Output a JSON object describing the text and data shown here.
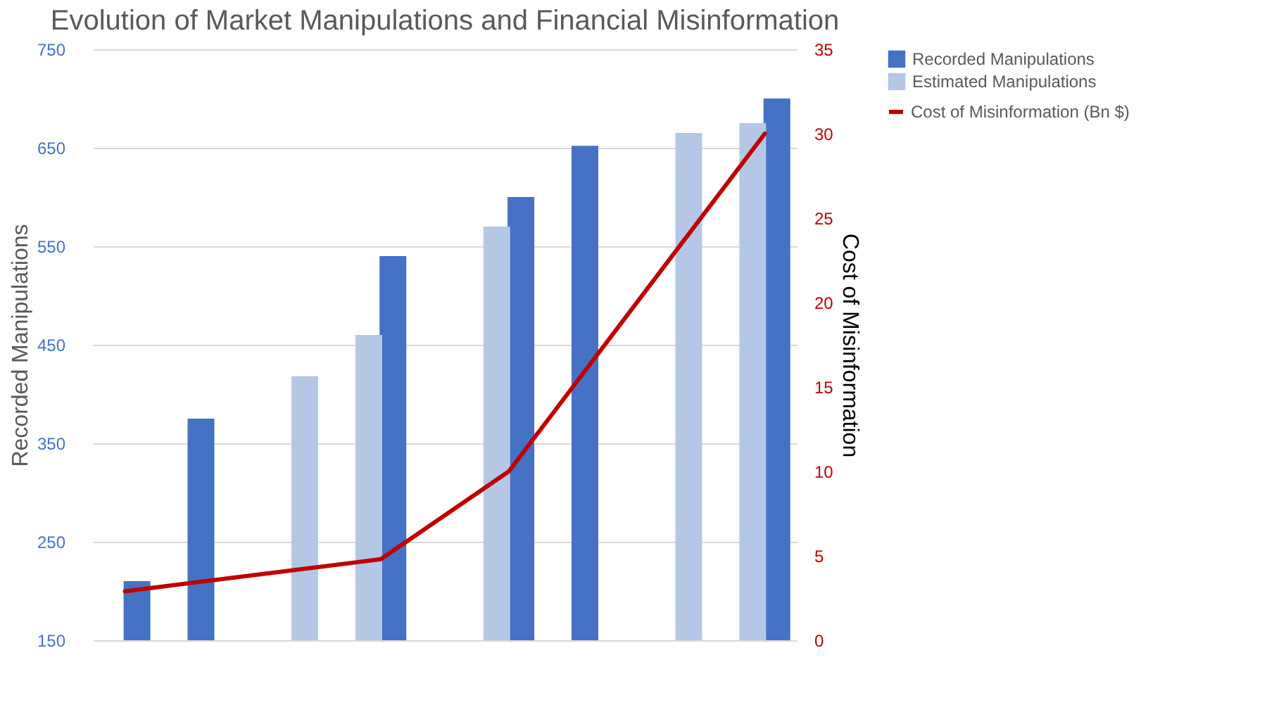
{
  "chart_data": {
    "type": "bar",
    "title": "Evolution of Market Manipulations and Financial Misinformation",
    "ylabel": "Recorded Manipulations",
    "y2label": "Cost of Misinformation",
    "categories": [
      null,
      null,
      null,
      null,
      null,
      null,
      null,
      null,
      null,
      null,
      null
    ],
    "series": [
      {
        "name": "Recorded Manipulations",
        "color": "#4472c4",
        "values": [
          210,
          375,
          null,
          null,
          540,
          null,
          600,
          652,
          null,
          null,
          700
        ]
      },
      {
        "name": "Estimated Manipulations",
        "color": "#b4c7e7",
        "values": [
          null,
          null,
          null,
          418,
          460,
          null,
          570,
          null,
          null,
          665,
          675
        ]
      },
      {
        "name": "Cost of Misinformation (Bn $)",
        "color": "#c00000",
        "type": "line",
        "axis": "y2",
        "values": [
          2.9,
          null,
          null,
          null,
          4.8,
          null,
          10,
          null,
          null,
          null,
          30
        ]
      }
    ],
    "ylim": [
      150,
      750
    ],
    "yticks": [
      150,
      250,
      350,
      450,
      550,
      650,
      750
    ],
    "y2lim": [
      0,
      35
    ],
    "y2ticks": [
      0,
      5,
      10,
      15,
      20,
      25,
      30,
      35
    ],
    "grid": "y",
    "legend": "right",
    "tick_labels": "y"
  }
}
